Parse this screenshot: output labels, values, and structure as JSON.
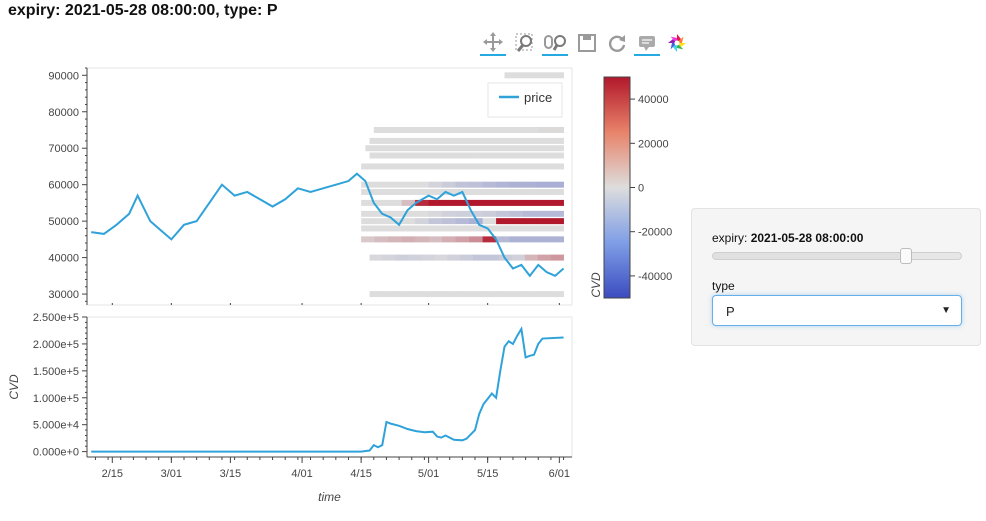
{
  "title": "expiry: 2021-05-28 08:00:00, type: P",
  "toolbar": {
    "tools": [
      {
        "name": "pan-tool",
        "icon": "pan-icon",
        "active": true
      },
      {
        "name": "box-zoom-tool",
        "icon": "box-zoom-icon",
        "active": false
      },
      {
        "name": "wheel-zoom-tool",
        "icon": "wheel-zoom-icon",
        "active": true
      },
      {
        "name": "save-tool",
        "icon": "save-icon",
        "active": false
      },
      {
        "name": "reset-tool",
        "icon": "reset-icon",
        "active": false
      },
      {
        "name": "hover-tool",
        "icon": "hover-icon",
        "active": true
      },
      {
        "name": "bokeh-logo",
        "icon": "bokeh-logo-icon",
        "active": false
      }
    ]
  },
  "widget": {
    "expiry_label": "expiry: ",
    "expiry_value": "2021-05-28 08:00:00",
    "slider_fraction": 0.77,
    "type_label": "type",
    "type_value": "P"
  },
  "chart_data": [
    {
      "type": "line",
      "panel": "price",
      "legend": [
        "price"
      ],
      "line_color": "#30a2da",
      "ylim": [
        27000,
        92000
      ],
      "y_ticks": [
        "30000",
        "40000",
        "50000",
        "60000",
        "70000",
        "80000",
        "90000"
      ],
      "x": [
        "2021-02-10",
        "2021-02-13",
        "2021-02-16",
        "2021-02-19",
        "2021-02-21",
        "2021-02-24",
        "2021-02-27",
        "2021-03-01",
        "2021-03-04",
        "2021-03-07",
        "2021-03-10",
        "2021-03-13",
        "2021-03-16",
        "2021-03-19",
        "2021-03-22",
        "2021-03-25",
        "2021-03-28",
        "2021-03-31",
        "2021-04-03",
        "2021-04-06",
        "2021-04-09",
        "2021-04-12",
        "2021-04-14",
        "2021-04-16",
        "2021-04-18",
        "2021-04-20",
        "2021-04-22",
        "2021-04-24",
        "2021-04-26",
        "2021-04-28",
        "2021-05-01",
        "2021-05-03",
        "2021-05-05",
        "2021-05-07",
        "2021-05-09",
        "2021-05-11",
        "2021-05-13",
        "2021-05-15",
        "2021-05-17",
        "2021-05-19",
        "2021-05-21",
        "2021-05-23",
        "2021-05-25",
        "2021-05-27",
        "2021-05-29",
        "2021-05-31",
        "2021-06-02"
      ],
      "values": [
        47000,
        46500,
        49000,
        52000,
        57000,
        50000,
        47000,
        45000,
        49000,
        50000,
        55000,
        60000,
        57000,
        58000,
        56000,
        54000,
        56000,
        59000,
        58000,
        59000,
        60000,
        61000,
        63000,
        61000,
        55000,
        52000,
        51000,
        49000,
        53000,
        55000,
        57000,
        56000,
        58000,
        57000,
        58000,
        53000,
        49000,
        48000,
        45000,
        40000,
        37000,
        38000,
        35000,
        38000,
        36000,
        35000,
        37000
      ]
    },
    {
      "type": "heatmap",
      "panel": "price",
      "colorbar_label": "CVD",
      "colorbar_ticks": [
        "-40000",
        "-20000",
        "0",
        "20000",
        "40000"
      ],
      "clim": [
        -50000,
        50000
      ],
      "strikes": [
        30000,
        40000,
        45000,
        48000,
        50000,
        52000,
        55000,
        58000,
        60000,
        65000,
        68000,
        70000,
        72000,
        75000,
        90000
      ],
      "rows": [
        {
          "strike": 90000,
          "start": "2021-05-19",
          "end": "2021-06-02",
          "values": [
            0
          ]
        },
        {
          "strike": 75000,
          "start": "2021-04-18",
          "end": "2021-06-02",
          "values": [
            0,
            0,
            0,
            0,
            0,
            0,
            0,
            0,
            0,
            0,
            0,
            0,
            0,
            1000,
            1000
          ]
        },
        {
          "strike": 72000,
          "start": "2021-04-17",
          "end": "2021-06-02",
          "values": [
            0,
            0,
            0,
            0,
            0,
            0,
            0,
            0,
            0,
            0,
            0,
            0,
            0,
            0,
            0
          ]
        },
        {
          "strike": 70000,
          "start": "2021-04-16",
          "end": "2021-06-02",
          "values": [
            0,
            0,
            0,
            0,
            0,
            0,
            0,
            0,
            0,
            0,
            0,
            0,
            0,
            0,
            0
          ]
        },
        {
          "strike": 68000,
          "start": "2021-04-17",
          "end": "2021-06-02",
          "values": [
            0,
            0,
            0,
            0,
            0,
            0,
            0,
            0,
            0,
            0,
            0,
            0,
            0,
            0,
            0
          ]
        },
        {
          "strike": 65000,
          "start": "2021-04-15",
          "end": "2021-06-02",
          "values": [
            0,
            0,
            0,
            0,
            0,
            0,
            0,
            0,
            0,
            0,
            0,
            0,
            0,
            0,
            0
          ]
        },
        {
          "strike": 60000,
          "start": "2021-04-15",
          "end": "2021-06-02",
          "values": [
            0,
            0,
            0,
            0,
            0,
            -3000,
            -6000,
            -9000,
            -10000,
            -12000,
            -14000,
            -15000,
            -15000,
            -16000,
            -16000
          ]
        },
        {
          "strike": 58000,
          "start": "2021-04-15",
          "end": "2021-06-02",
          "values": [
            0,
            0,
            0,
            0,
            0,
            0,
            0,
            0,
            0,
            0,
            0,
            0,
            0,
            0,
            0
          ]
        },
        {
          "strike": 55000,
          "start": "2021-04-15",
          "end": "2021-06-02",
          "values": [
            0,
            0,
            0,
            8000,
            45000,
            50000,
            50000,
            50000,
            50000,
            50000,
            50000,
            50000,
            50000,
            50000,
            50000
          ]
        },
        {
          "strike": 52000,
          "start": "2021-04-15",
          "end": "2021-06-02",
          "values": [
            0,
            0,
            0,
            0,
            0,
            -2000,
            -4000,
            -5000,
            -5000,
            -6000,
            -8000,
            -10000,
            -12000,
            -12000,
            -12000
          ]
        },
        {
          "strike": 50000,
          "start": "2021-04-15",
          "end": "2021-06-02",
          "values": [
            0,
            0,
            0,
            0,
            -3000,
            -8000,
            -10000,
            -12000,
            -15000,
            0,
            50000,
            50000,
            50000,
            50000,
            50000
          ]
        },
        {
          "strike": 48000,
          "start": "2021-04-15",
          "end": "2021-06-02",
          "values": [
            0,
            0,
            0,
            0,
            0,
            0,
            0,
            0,
            0,
            0,
            0,
            0,
            0,
            0,
            0
          ]
        },
        {
          "strike": 45000,
          "start": "2021-04-15",
          "end": "2021-06-02",
          "values": [
            5000,
            8000,
            10000,
            12000,
            10000,
            8000,
            12000,
            15000,
            20000,
            45000,
            -12000,
            -15000,
            -15000,
            -15000,
            -15000
          ]
        },
        {
          "strike": 40000,
          "start": "2021-04-17",
          "end": "2021-06-02",
          "values": [
            -2000,
            -3000,
            -5000,
            -4000,
            -3000,
            -2000,
            -4000,
            -6000,
            -8000,
            -8000,
            -6000,
            -4000,
            10000,
            15000,
            18000
          ]
        },
        {
          "strike": 30000,
          "start": "2021-04-17",
          "end": "2021-06-02",
          "values": [
            0,
            0,
            0,
            0,
            0,
            0,
            0,
            0,
            0,
            0,
            0,
            0,
            0,
            0,
            0
          ]
        }
      ]
    },
    {
      "type": "line",
      "panel": "cvd",
      "ylabel": "CVD",
      "xlabel": "time",
      "line_color": "#30a2da",
      "ylim": [
        -10000,
        250000
      ],
      "y_ticks": [
        "0.000e+0",
        "5.000e+4",
        "1.000e+5",
        "1.500e+5",
        "2.000e+5",
        "2.500e+5"
      ],
      "x_ticks": [
        "2/15",
        "3/01",
        "3/15",
        "4/01",
        "4/15",
        "5/01",
        "5/15",
        "6/01"
      ],
      "x": [
        "2021-02-10",
        "2021-04-15",
        "2021-04-17",
        "2021-04-18",
        "2021-04-19",
        "2021-04-20",
        "2021-04-21",
        "2021-04-22",
        "2021-04-24",
        "2021-04-26",
        "2021-04-28",
        "2021-04-30",
        "2021-05-02",
        "2021-05-03",
        "2021-05-04",
        "2021-05-05",
        "2021-05-07",
        "2021-05-09",
        "2021-05-10",
        "2021-05-12",
        "2021-05-13",
        "2021-05-14",
        "2021-05-15",
        "2021-05-16",
        "2021-05-17",
        "2021-05-18",
        "2021-05-19",
        "2021-05-20",
        "2021-05-21",
        "2021-05-22",
        "2021-05-23",
        "2021-05-24",
        "2021-05-25",
        "2021-05-26",
        "2021-05-27",
        "2021-05-28",
        "2021-06-02"
      ],
      "values": [
        0,
        0,
        2000,
        12000,
        8000,
        12000,
        55000,
        52000,
        48000,
        42000,
        38000,
        36000,
        37000,
        28000,
        26000,
        30000,
        22000,
        21000,
        24000,
        40000,
        70000,
        88000,
        98000,
        108000,
        100000,
        150000,
        195000,
        205000,
        200000,
        215000,
        228000,
        175000,
        178000,
        180000,
        200000,
        210000,
        212000
      ]
    }
  ]
}
